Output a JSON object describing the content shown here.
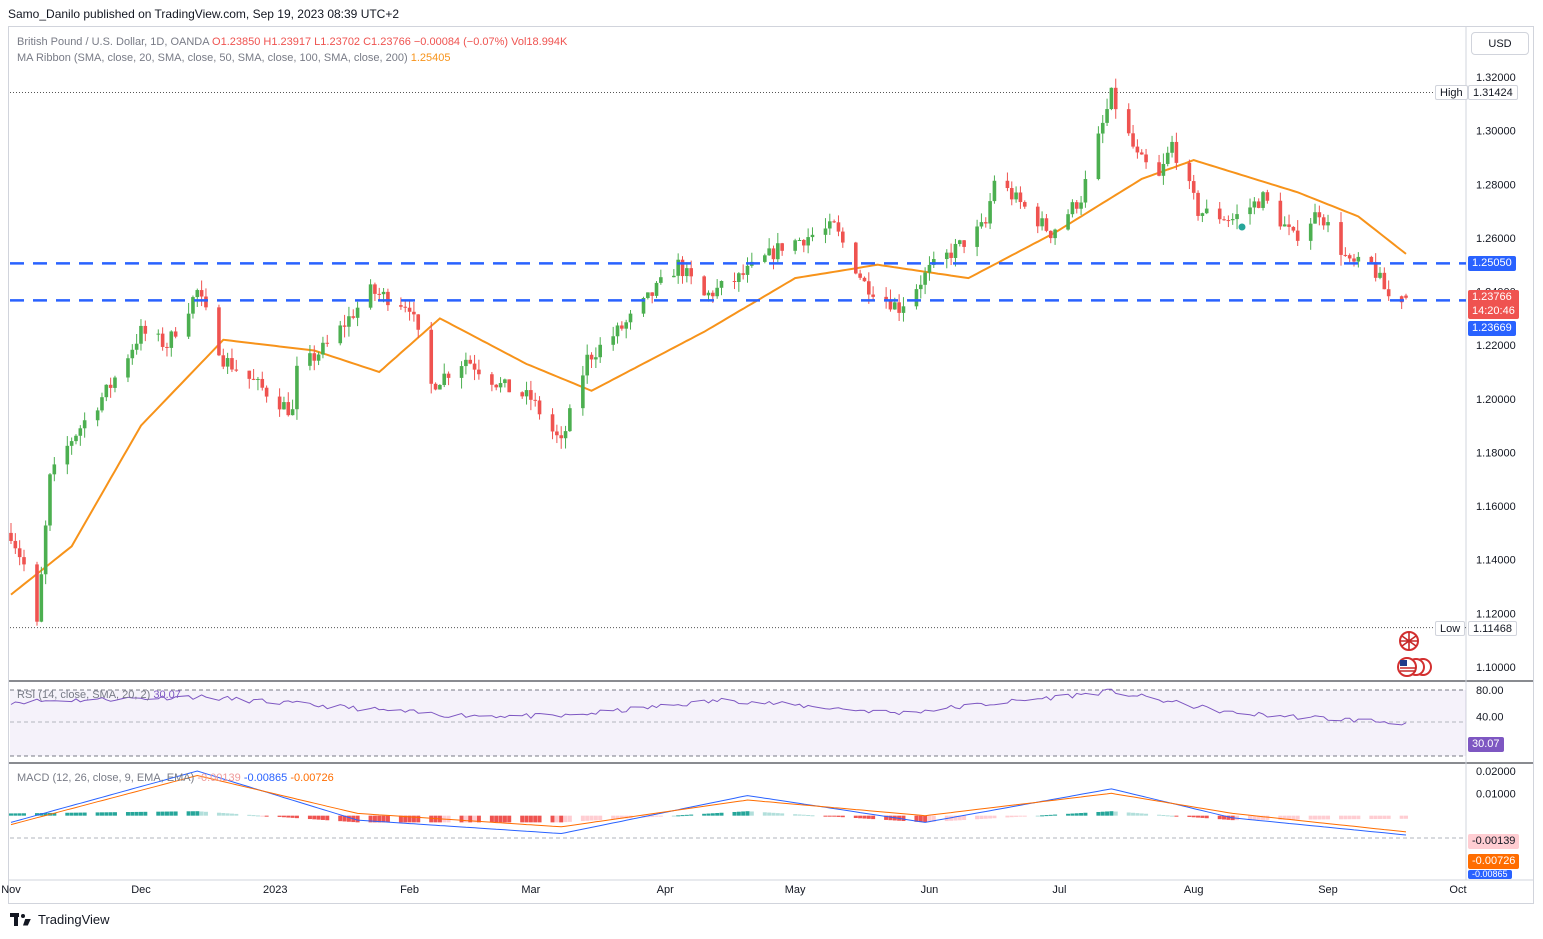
{
  "publish_line": "Samo_Danilo published on TradingView.com, Sep 19, 2023 08:39 UTC+2",
  "currency_button": "USD",
  "legend": {
    "symbol": "British Pound / U.S. Dollar, 1D, OANDA",
    "ohlc": "O1.23850 H1.23917 L1.23702 C1.23766 −0.00084 (−0.07%) Vol18.994K",
    "ma_label": "MA Ribbon (SMA, close, 20, SMA, close, 50, SMA, close, 100, SMA, close, 200)",
    "ma_value": "1.25405"
  },
  "rsi": {
    "label": "RSI (14, close, SMA, 20, 2)",
    "value": "30.07",
    "ticks": [
      "80.00",
      "40.00"
    ]
  },
  "macd": {
    "label": "MACD (12, 26, close, 9, EMA, EMA)",
    "hist_value": "-0.00139",
    "macd_value": "-0.00865",
    "signal_value": "-0.00726",
    "ticks": [
      "0.02000",
      "0.01000"
    ],
    "badges": [
      "-0.00139",
      "-0.00726",
      "-0.00865"
    ]
  },
  "price_axis": {
    "ticks": [
      "1.32000",
      "1.30000",
      "1.28000",
      "1.26000",
      "1.24000",
      "1.22000",
      "1.20000",
      "1.18000",
      "1.16000",
      "1.14000",
      "1.12000",
      "1.10000"
    ],
    "high_label": "High",
    "high_value": "1.31424",
    "low_label": "Low",
    "low_value": "1.11468",
    "level_upper": "1.25050",
    "last_price": "1.23766",
    "countdown": "14:20:46",
    "level_lower": "1.23669"
  },
  "time_axis": [
    "Nov",
    "Dec",
    "2023",
    "Feb",
    "Mar",
    "Apr",
    "May",
    "Jun",
    "Jul",
    "Aug",
    "Sep",
    "Oct"
  ],
  "footer": {
    "brand": "TradingView"
  },
  "colors": {
    "up": "#26a69a",
    "up_candle": "#4caf50",
    "down": "#ef5350",
    "ma": "#f7931a",
    "level_line": "#2962ff",
    "rsi_line": "#7e57c2",
    "macd_line": "#2962ff",
    "signal_line": "#ff6d00"
  },
  "chart_data": {
    "type": "candlestick",
    "title": "British Pound / U.S. Dollar, 1D, OANDA",
    "x_range": [
      "2022-11-01",
      "2023-09-19"
    ],
    "ylim": [
      1.1,
      1.32
    ],
    "ohlc_keypoints": [
      {
        "date": "2022-11-01",
        "close": 1.15
      },
      {
        "date": "2022-11-04",
        "close": 1.138
      },
      {
        "date": "2022-11-07",
        "close": 1.115
      },
      {
        "date": "2022-11-10",
        "close": 1.17
      },
      {
        "date": "2022-11-15",
        "close": 1.185
      },
      {
        "date": "2022-11-24",
        "close": 1.205
      },
      {
        "date": "2022-12-01",
        "close": 1.225
      },
      {
        "date": "2022-12-07",
        "close": 1.22
      },
      {
        "date": "2022-12-14",
        "close": 1.24
      },
      {
        "date": "2022-12-20",
        "close": 1.215
      },
      {
        "date": "2023-01-05",
        "close": 1.195
      },
      {
        "date": "2023-01-06",
        "close": 1.21
      },
      {
        "date": "2023-01-13",
        "close": 1.22
      },
      {
        "date": "2023-01-23",
        "close": 1.24
      },
      {
        "date": "2023-02-01",
        "close": 1.235
      },
      {
        "date": "2023-02-06",
        "close": 1.205
      },
      {
        "date": "2023-02-14",
        "close": 1.215
      },
      {
        "date": "2023-02-22",
        "close": 1.205
      },
      {
        "date": "2023-03-01",
        "close": 1.2
      },
      {
        "date": "2023-03-08",
        "close": 1.183
      },
      {
        "date": "2023-03-14",
        "close": 1.215
      },
      {
        "date": "2023-03-23",
        "close": 1.228
      },
      {
        "date": "2023-04-04",
        "close": 1.25
      },
      {
        "date": "2023-04-10",
        "close": 1.238
      },
      {
        "date": "2023-04-18",
        "close": 1.245
      },
      {
        "date": "2023-04-28",
        "close": 1.257
      },
      {
        "date": "2023-05-10",
        "close": 1.264
      },
      {
        "date": "2023-05-17",
        "close": 1.243
      },
      {
        "date": "2023-05-25",
        "close": 1.234
      },
      {
        "date": "2023-06-01",
        "close": 1.248
      },
      {
        "date": "2023-06-14",
        "close": 1.265
      },
      {
        "date": "2023-06-16",
        "close": 1.282
      },
      {
        "date": "2023-06-29",
        "close": 1.262
      },
      {
        "date": "2023-07-06",
        "close": 1.275
      },
      {
        "date": "2023-07-13",
        "close": 1.313
      },
      {
        "date": "2023-07-19",
        "close": 1.29
      },
      {
        "date": "2023-07-24",
        "close": 1.282
      },
      {
        "date": "2023-07-27",
        "close": 1.295
      },
      {
        "date": "2023-08-02",
        "close": 1.27
      },
      {
        "date": "2023-08-10",
        "close": 1.267
      },
      {
        "date": "2023-08-17",
        "close": 1.275
      },
      {
        "date": "2023-08-24",
        "close": 1.26
      },
      {
        "date": "2023-08-30",
        "close": 1.27
      },
      {
        "date": "2023-09-06",
        "close": 1.25
      },
      {
        "date": "2023-09-11",
        "close": 1.25
      },
      {
        "date": "2023-09-15",
        "close": 1.238
      },
      {
        "date": "2023-09-19",
        "open": 1.2385,
        "high": 1.23917,
        "low": 1.23702,
        "close": 1.23766
      }
    ],
    "ma20_keypoints": [
      {
        "date": "2022-11-01",
        "value": 1.127
      },
      {
        "date": "2022-11-15",
        "value": 1.145
      },
      {
        "date": "2022-12-01",
        "value": 1.19
      },
      {
        "date": "2022-12-20",
        "value": 1.222
      },
      {
        "date": "2023-01-10",
        "value": 1.218
      },
      {
        "date": "2023-01-25",
        "value": 1.21
      },
      {
        "date": "2023-02-08",
        "value": 1.23
      },
      {
        "date": "2023-02-28",
        "value": 1.213
      },
      {
        "date": "2023-03-15",
        "value": 1.203
      },
      {
        "date": "2023-04-10",
        "value": 1.225
      },
      {
        "date": "2023-05-01",
        "value": 1.245
      },
      {
        "date": "2023-05-20",
        "value": 1.25
      },
      {
        "date": "2023-06-10",
        "value": 1.245
      },
      {
        "date": "2023-06-30",
        "value": 1.262
      },
      {
        "date": "2023-07-20",
        "value": 1.282
      },
      {
        "date": "2023-08-01",
        "value": 1.289
      },
      {
        "date": "2023-08-25",
        "value": 1.277
      },
      {
        "date": "2023-09-08",
        "value": 1.268
      },
      {
        "date": "2023-09-19",
        "value": 1.25405
      }
    ],
    "horizontal_levels": [
      1.2505,
      1.23669
    ],
    "high": 1.31424,
    "low": 1.11468,
    "rsi_keypoints": [
      {
        "date": "2022-11-01",
        "value": 62
      },
      {
        "date": "2022-12-14",
        "value": 70
      },
      {
        "date": "2023-02-10",
        "value": 42
      },
      {
        "date": "2023-03-08",
        "value": 40
      },
      {
        "date": "2023-04-15",
        "value": 65
      },
      {
        "date": "2023-05-25",
        "value": 45
      },
      {
        "date": "2023-07-13",
        "value": 78
      },
      {
        "date": "2023-08-10",
        "value": 45
      },
      {
        "date": "2023-09-19",
        "value": 30.07
      }
    ],
    "rsi_ylim": [
      20,
      85
    ],
    "macd_keypoints": [
      {
        "date": "2022-11-01",
        "macd": -0.003,
        "signal": -0.004
      },
      {
        "date": "2022-12-14",
        "macd": 0.02,
        "signal": 0.018
      },
      {
        "date": "2023-01-20",
        "macd": -0.002,
        "signal": 0.001
      },
      {
        "date": "2023-03-08",
        "macd": -0.008,
        "signal": -0.005
      },
      {
        "date": "2023-04-20",
        "macd": 0.009,
        "signal": 0.007
      },
      {
        "date": "2023-05-31",
        "macd": -0.003,
        "signal": 0.0
      },
      {
        "date": "2023-07-13",
        "macd": 0.012,
        "signal": 0.01
      },
      {
        "date": "2023-08-10",
        "macd": -0.001,
        "signal": 0.001
      },
      {
        "date": "2023-09-19",
        "macd": -0.00865,
        "signal": -0.00726,
        "hist": -0.00139
      }
    ],
    "macd_ylim": [
      -0.01,
      0.022
    ]
  }
}
